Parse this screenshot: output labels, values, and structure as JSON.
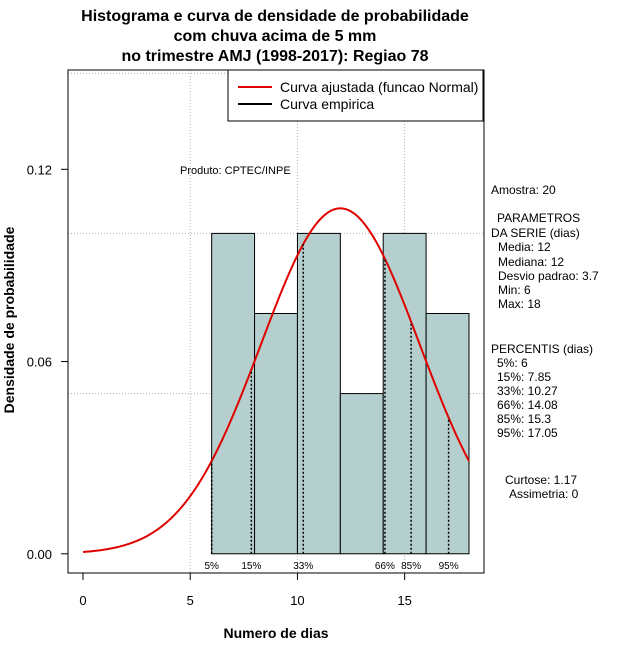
{
  "chart_data": {
    "type": "bar",
    "title_lines": [
      "Histograma e curva de densidade de probabilidade",
      "com chuva acima de 5 mm",
      "no trimestre AMJ (1998-2017): Regiao 78"
    ],
    "xlabel": "Numero de dias",
    "ylabel": "Densidade de probabilidade",
    "xlim": [
      -0.7,
      18.7
    ],
    "ylim": [
      -0.006,
      0.151
    ],
    "x_ticks": [
      0,
      5,
      10,
      15
    ],
    "y_ticks": [
      0.0,
      0.06,
      0.12
    ],
    "y_tick_labels": [
      "0.00",
      "0.06",
      "0.12"
    ],
    "grid": true,
    "grid_x": [
      5,
      10,
      15
    ],
    "grid_y": [
      0.05,
      0.1,
      0.15
    ],
    "histogram": {
      "bin_edges": [
        6,
        8,
        10,
        12,
        14,
        16,
        18
      ],
      "density": [
        0.1,
        0.075,
        0.1,
        0.05,
        0.1,
        0.075
      ],
      "fill": "#b5cfce"
    },
    "fitted_curve": {
      "name": "Curva ajustada (funcao Normal)",
      "distribution": "normal",
      "mean": 12,
      "sd": 3.7,
      "x_range": [
        0,
        18
      ],
      "color": "#e00000"
    },
    "empirical_curve": {
      "name": "Curva empirica",
      "color": "#000000"
    },
    "percentile_markers": [
      {
        "label": "5%",
        "x": 6
      },
      {
        "label": "15%",
        "x": 7.85
      },
      {
        "label": "33%",
        "x": 10.27
      },
      {
        "label": "66%",
        "x": 14.08
      },
      {
        "label": "85%",
        "x": 15.3
      },
      {
        "label": "95%",
        "x": 17.05
      }
    ],
    "legend": {
      "placement": "top-right",
      "entries": [
        "Curva ajustada (funcao Normal)",
        "Curva empirica"
      ]
    },
    "annotation": "Produto: CPTEC/INPE"
  },
  "side_panel": {
    "amostra": "Amostra: 20",
    "param_title_1": "PARAMETROS",
    "param_title_2": "DA SERIE (dias)",
    "params": [
      "Media: 12",
      "Mediana: 12",
      "Desvio padrao: 3.7",
      "Min: 6",
      "Max: 18"
    ],
    "perc_title": "PERCENTIS (dias)",
    "percentis": [
      "5%: 6",
      "15%: 7.85",
      "33%: 10.27",
      "66%: 14.08",
      "85%: 15.3",
      "95%: 17.05"
    ],
    "curtose": "Curtose: 1.17",
    "assimetria": "Assimetria: 0"
  }
}
